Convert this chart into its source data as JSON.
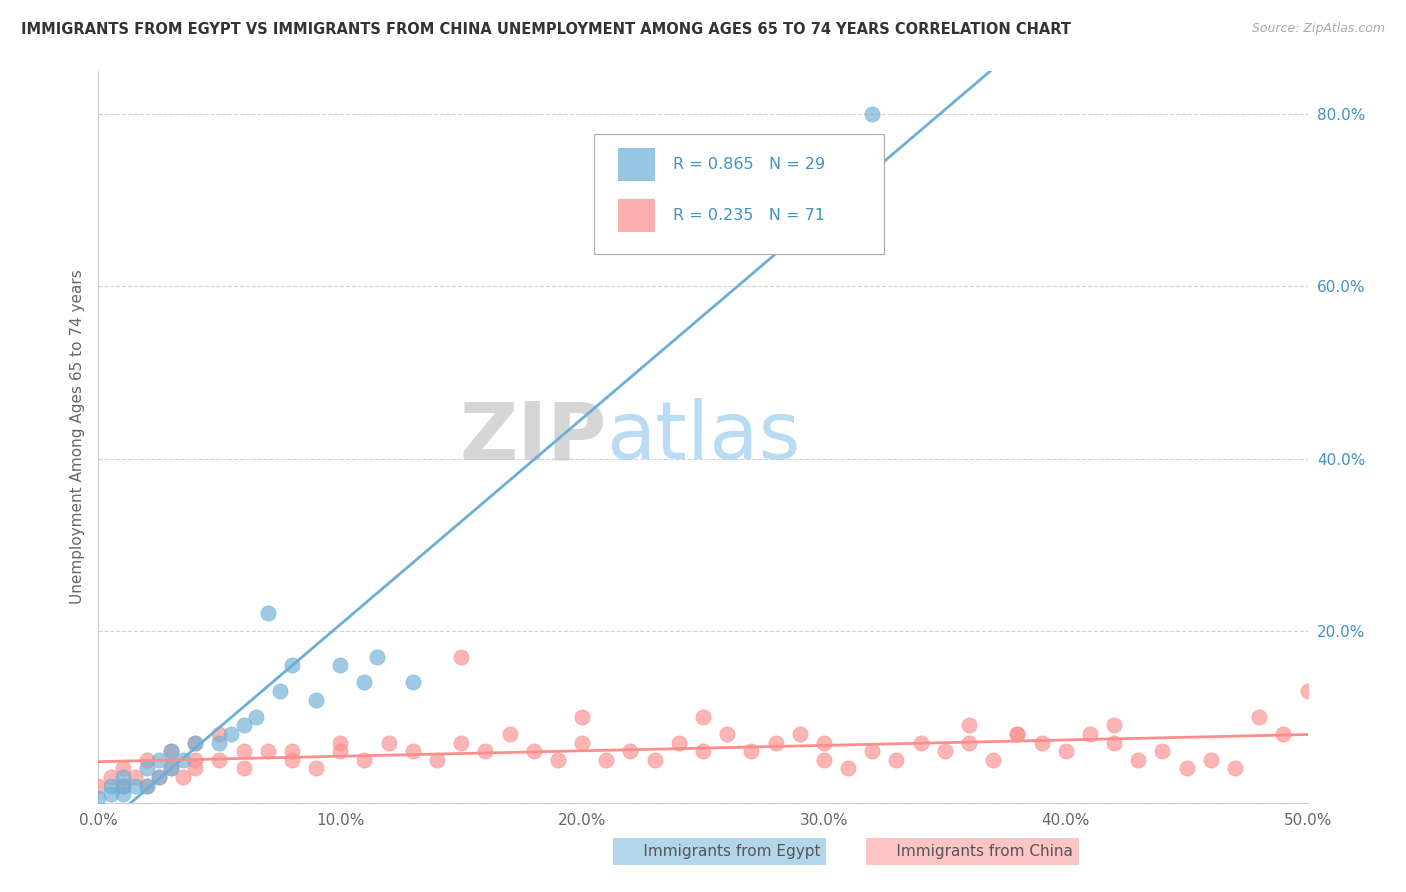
{
  "title": "IMMIGRANTS FROM EGYPT VS IMMIGRANTS FROM CHINA UNEMPLOYMENT AMONG AGES 65 TO 74 YEARS CORRELATION CHART",
  "source": "Source: ZipAtlas.com",
  "ylabel": "Unemployment Among Ages 65 to 74 years",
  "xlim": [
    0.0,
    0.5
  ],
  "ylim": [
    0.0,
    0.85
  ],
  "xtick_labels": [
    "0.0%",
    "",
    "10.0%",
    "",
    "20.0%",
    "",
    "30.0%",
    "",
    "40.0%",
    "",
    "50.0%"
  ],
  "xtick_vals": [
    0.0,
    0.05,
    0.1,
    0.15,
    0.2,
    0.25,
    0.3,
    0.35,
    0.4,
    0.45,
    0.5
  ],
  "ytick_labels": [
    "",
    "20.0%",
    "40.0%",
    "60.0%",
    "80.0%"
  ],
  "ytick_vals": [
    0.0,
    0.2,
    0.4,
    0.6,
    0.8
  ],
  "egypt_color": "#6baed6",
  "china_color": "#fc8d8d",
  "egypt_R": 0.865,
  "egypt_N": 29,
  "china_R": 0.235,
  "china_N": 71,
  "legend_color": "#4292c6",
  "watermark_zip": "ZIP",
  "watermark_atlas": "atlas",
  "egypt_scatter_x": [
    0.0,
    0.005,
    0.005,
    0.01,
    0.01,
    0.01,
    0.015,
    0.02,
    0.02,
    0.025,
    0.025,
    0.03,
    0.03,
    0.035,
    0.04,
    0.05,
    0.055,
    0.06,
    0.065,
    0.07,
    0.075,
    0.08,
    0.09,
    0.1,
    0.11,
    0.115,
    0.13,
    0.3,
    0.32
  ],
  "egypt_scatter_y": [
    0.005,
    0.01,
    0.02,
    0.01,
    0.02,
    0.03,
    0.02,
    0.02,
    0.04,
    0.03,
    0.05,
    0.04,
    0.06,
    0.05,
    0.07,
    0.07,
    0.08,
    0.09,
    0.1,
    0.22,
    0.13,
    0.16,
    0.12,
    0.16,
    0.14,
    0.17,
    0.14,
    0.76,
    0.8
  ],
  "china_scatter_x": [
    0.0,
    0.005,
    0.01,
    0.01,
    0.015,
    0.02,
    0.02,
    0.025,
    0.03,
    0.03,
    0.035,
    0.04,
    0.04,
    0.05,
    0.05,
    0.06,
    0.07,
    0.08,
    0.09,
    0.1,
    0.11,
    0.12,
    0.13,
    0.14,
    0.15,
    0.16,
    0.17,
    0.18,
    0.19,
    0.2,
    0.21,
    0.22,
    0.23,
    0.24,
    0.25,
    0.26,
    0.27,
    0.28,
    0.29,
    0.3,
    0.31,
    0.32,
    0.33,
    0.34,
    0.35,
    0.36,
    0.37,
    0.38,
    0.39,
    0.4,
    0.41,
    0.42,
    0.43,
    0.44,
    0.45,
    0.46,
    0.47,
    0.48,
    0.49,
    0.5,
    0.36,
    0.38,
    0.42,
    0.15,
    0.2,
    0.25,
    0.3,
    0.1,
    0.08,
    0.06,
    0.04
  ],
  "china_scatter_y": [
    0.02,
    0.03,
    0.02,
    0.04,
    0.03,
    0.02,
    0.05,
    0.03,
    0.04,
    0.06,
    0.03,
    0.04,
    0.07,
    0.05,
    0.08,
    0.04,
    0.06,
    0.05,
    0.04,
    0.06,
    0.05,
    0.07,
    0.06,
    0.05,
    0.07,
    0.06,
    0.08,
    0.06,
    0.05,
    0.07,
    0.05,
    0.06,
    0.05,
    0.07,
    0.06,
    0.08,
    0.06,
    0.07,
    0.08,
    0.05,
    0.04,
    0.06,
    0.05,
    0.07,
    0.06,
    0.07,
    0.05,
    0.08,
    0.07,
    0.06,
    0.08,
    0.07,
    0.05,
    0.06,
    0.04,
    0.05,
    0.04,
    0.1,
    0.08,
    0.13,
    0.09,
    0.08,
    0.09,
    0.17,
    0.1,
    0.1,
    0.07,
    0.07,
    0.06,
    0.06,
    0.05
  ],
  "bg_color": "#ffffff",
  "grid_color": "#cccccc"
}
